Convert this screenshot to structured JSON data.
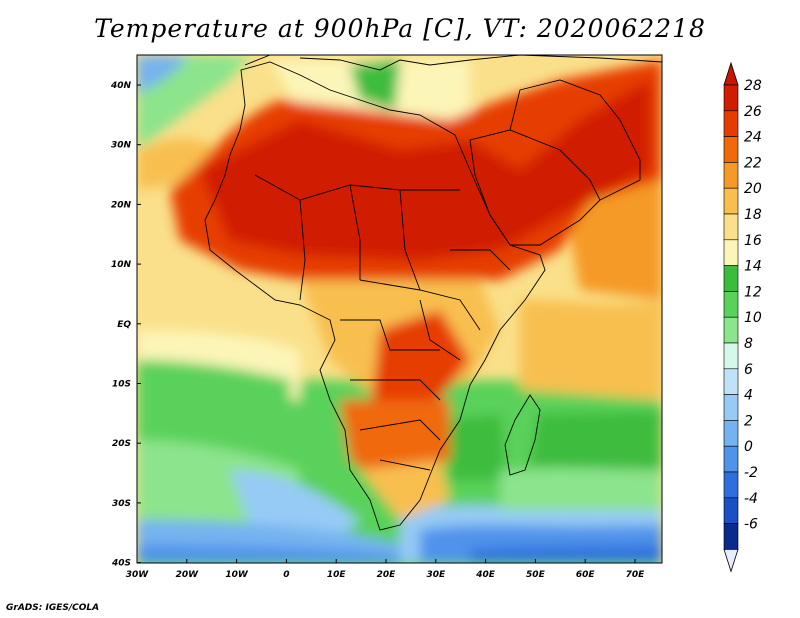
{
  "map": {
    "title": "Temperature at 900hPa [C], VT: 2020062218",
    "credit": "GrADS: IGES/COLA",
    "lon_ticks": [
      "30W",
      "20W",
      "10W",
      "0",
      "10E",
      "20E",
      "30E",
      "40E",
      "50E",
      "60E",
      "70E"
    ],
    "lat_ticks": [
      "40N",
      "30N",
      "20N",
      "10N",
      "EQ",
      "10S",
      "20S",
      "30S",
      "40S"
    ],
    "extent": {
      "lon_min": -30,
      "lon_max": 76,
      "lat_min": -40,
      "lat_max": 45
    }
  },
  "colorbar": {
    "levels": [
      "28",
      "26",
      "24",
      "22",
      "20",
      "18",
      "16",
      "14",
      "12",
      "10",
      "8",
      "6",
      "4",
      "2",
      "0",
      "-2",
      "-4",
      "-6"
    ],
    "colors": [
      "#d01c00",
      "#e63c00",
      "#f0690a",
      "#f59a28",
      "#f8bf50",
      "#fae08a",
      "#fcf5b8",
      "#3cbc3c",
      "#5ad15a",
      "#8ce48c",
      "#d6f8ea",
      "#bfe2f7",
      "#96cbf5",
      "#74b2f0",
      "#4f93ea",
      "#2f6fdd",
      "#1c4fc4",
      "#0a2a8c"
    ],
    "top_arrow_color": "#c81400",
    "bottom_arrow_color": "#e8ecff"
  }
}
